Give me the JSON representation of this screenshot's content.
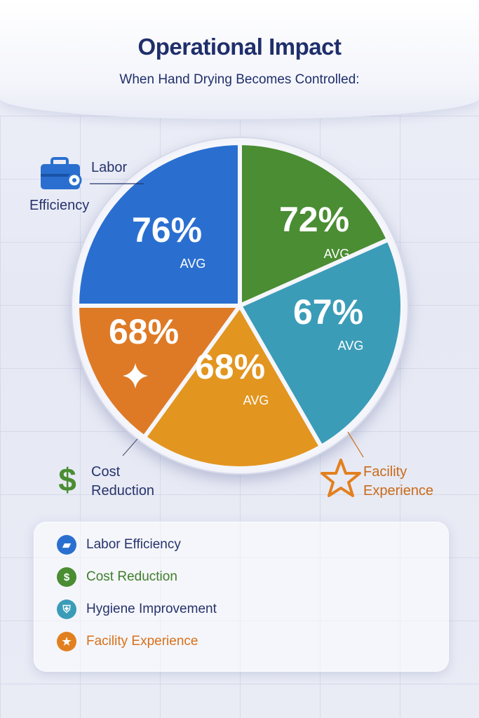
{
  "header": {
    "title": "Operational Impact",
    "subtitle": "When Hand Drying Becomes Controlled:"
  },
  "colors": {
    "labor": "#2a6fd0",
    "cost": "#4a8d33",
    "hygiene": "#3b9cb8",
    "facility": "#e2801f",
    "orange_dark": "#de7a26",
    "title": "#1f2f6b"
  },
  "callouts": {
    "labor": {
      "line1": "Labor",
      "line2": "Efficiency",
      "icon": "toolbox-gear-icon"
    },
    "cost": {
      "line1": "Cost",
      "line2": "Reduction",
      "icon": "dollar-icon"
    },
    "facility": {
      "line1": "Facility",
      "line2": "Experience",
      "icon": "star-icon"
    }
  },
  "chart_data": {
    "type": "pie",
    "slices": [
      {
        "value_label": "76%",
        "sub_label": "AVG",
        "value": 76,
        "color": "#2a6fd0"
      },
      {
        "value_label": "72%",
        "sub_label": "AVG",
        "value": 72,
        "color": "#4a8d33"
      },
      {
        "value_label": "67%",
        "sub_label": "AVG",
        "value": 67,
        "color": "#3b9cb8"
      },
      {
        "value_label": "68%",
        "sub_label": "AVG",
        "value": 68,
        "color": "#e2951f"
      },
      {
        "value_label": "68%",
        "sub_label": "",
        "value": 68,
        "color": "#de7a26"
      }
    ]
  },
  "legend": {
    "items": [
      {
        "label": "Labor Efficiency",
        "color": "#2a6fd0",
        "text_color": "#26336b",
        "icon": "toolbox-icon",
        "glyph": "▰"
      },
      {
        "label": "Cost Reduction",
        "color": "#4a8d33",
        "text_color": "#3f7d2a",
        "icon": "dollar-icon",
        "glyph": "$"
      },
      {
        "label": "Hygiene Improvement",
        "color": "#3b9cb8",
        "text_color": "#26336b",
        "icon": "shield-icon",
        "glyph": "⛨"
      },
      {
        "label": "Facility Experience",
        "color": "#e2801f",
        "text_color": "#d8701a",
        "icon": "star-icon",
        "glyph": "★"
      }
    ]
  }
}
